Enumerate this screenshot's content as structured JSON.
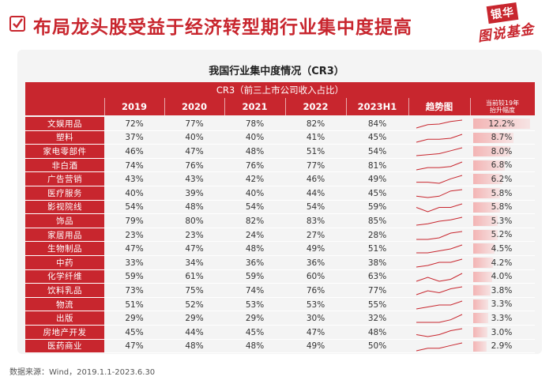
{
  "header": {
    "title": "布局龙头股受益于经济转型期行业集中度提高",
    "logo_top": "银华",
    "logo_bottom": "图说基金",
    "accent_color": "#c8262e"
  },
  "table_title": "我国行业集中度情况（CR3）",
  "banner": "CR3（前三上市公司收入占比）",
  "columns": [
    "2019",
    "2020",
    "2021",
    "2022",
    "2023H1"
  ],
  "trend_label": "趋势图",
  "change_label_line1": "当前较19年",
  "change_label_line2": "抬升幅度",
  "rows": [
    {
      "industry": "文娱用品",
      "values": [
        "72%",
        "77%",
        "78%",
        "82%",
        "84%"
      ],
      "change": "12.2%",
      "change_level": 12.2
    },
    {
      "industry": "塑料",
      "values": [
        "37%",
        "40%",
        "40%",
        "41%",
        "45%"
      ],
      "change": "8.7%",
      "change_level": 8.7
    },
    {
      "industry": "家电零部件",
      "values": [
        "46%",
        "47%",
        "48%",
        "51%",
        "54%"
      ],
      "change": "8.0%",
      "change_level": 8.0
    },
    {
      "industry": "非白酒",
      "values": [
        "74%",
        "76%",
        "76%",
        "77%",
        "81%"
      ],
      "change": "6.8%",
      "change_level": 6.8
    },
    {
      "industry": "广告营销",
      "values": [
        "43%",
        "43%",
        "42%",
        "46%",
        "49%"
      ],
      "change": "6.2%",
      "change_level": 6.2
    },
    {
      "industry": "医疗服务",
      "values": [
        "40%",
        "39%",
        "40%",
        "44%",
        "45%"
      ],
      "change": "5.8%",
      "change_level": 5.8
    },
    {
      "industry": "影视院线",
      "values": [
        "54%",
        "48%",
        "54%",
        "54%",
        "59%"
      ],
      "change": "5.8%",
      "change_level": 5.8
    },
    {
      "industry": "饰品",
      "values": [
        "79%",
        "80%",
        "82%",
        "83%",
        "85%"
      ],
      "change": "5.3%",
      "change_level": 5.3
    },
    {
      "industry": "家居用品",
      "values": [
        "23%",
        "23%",
        "24%",
        "27%",
        "28%"
      ],
      "change": "5.2%",
      "change_level": 5.2
    },
    {
      "industry": "生物制品",
      "values": [
        "47%",
        "47%",
        "48%",
        "49%",
        "51%"
      ],
      "change": "4.5%",
      "change_level": 4.5
    },
    {
      "industry": "中药",
      "values": [
        "33%",
        "34%",
        "36%",
        "36%",
        "38%"
      ],
      "change": "4.2%",
      "change_level": 4.2
    },
    {
      "industry": "化学纤维",
      "values": [
        "59%",
        "61%",
        "59%",
        "60%",
        "63%"
      ],
      "change": "4.0%",
      "change_level": 4.0
    },
    {
      "industry": "饮料乳品",
      "values": [
        "73%",
        "75%",
        "74%",
        "76%",
        "77%"
      ],
      "change": "3.8%",
      "change_level": 3.8
    },
    {
      "industry": "物流",
      "values": [
        "51%",
        "52%",
        "53%",
        "53%",
        "55%"
      ],
      "change": "3.3%",
      "change_level": 3.3
    },
    {
      "industry": "出版",
      "values": [
        "29%",
        "29%",
        "29%",
        "30%",
        "32%"
      ],
      "change": "3.3%",
      "change_level": 3.3
    },
    {
      "industry": "房地产开发",
      "values": [
        "45%",
        "44%",
        "45%",
        "47%",
        "48%"
      ],
      "change": "3.0%",
      "change_level": 3.0
    },
    {
      "industry": "医药商业",
      "values": [
        "47%",
        "48%",
        "48%",
        "49%",
        "50%"
      ],
      "change": "2.9%",
      "change_level": 2.9
    }
  ],
  "source": "数据来源：Wind，2019.1.1-2023.6.30"
}
